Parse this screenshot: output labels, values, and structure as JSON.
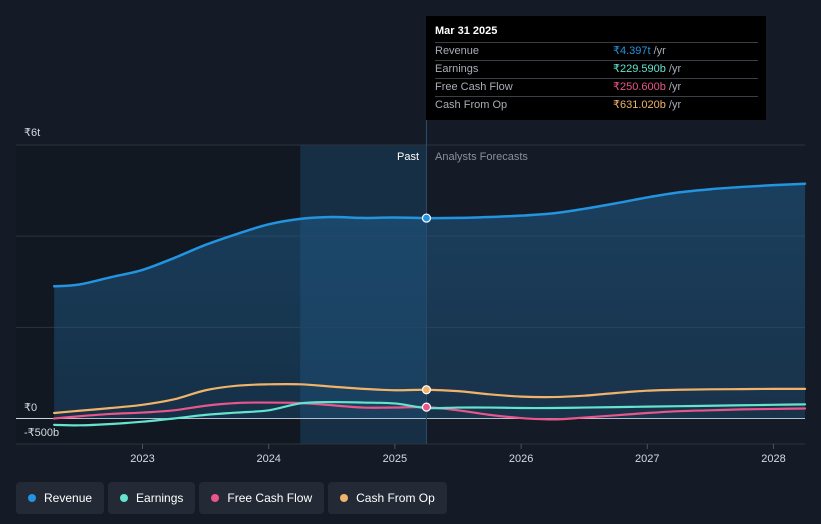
{
  "tooltip": {
    "date": "Mar 31 2025",
    "rows": [
      {
        "label": "Revenue",
        "value": "₹4.397t",
        "unit": "/yr",
        "color": "#2394df"
      },
      {
        "label": "Earnings",
        "value": "₹229.590b",
        "unit": "/yr",
        "color": "#64e3cf"
      },
      {
        "label": "Free Cash Flow",
        "value": "₹250.600b",
        "unit": "/yr",
        "color": "#e8568a"
      },
      {
        "label": "Cash From Op",
        "value": "₹631.020b",
        "unit": "/yr",
        "color": "#f1b36a"
      }
    ]
  },
  "legend": [
    {
      "label": "Revenue",
      "color": "#2394df"
    },
    {
      "label": "Earnings",
      "color": "#64e3cf"
    },
    {
      "label": "Free Cash Flow",
      "color": "#e8568a"
    },
    {
      "label": "Cash From Op",
      "color": "#f1b36a"
    }
  ],
  "chart_data": {
    "type": "line",
    "units": "INR",
    "y_axis_labels": [
      "₹6t",
      "₹0",
      "-₹500b"
    ],
    "ylim": [
      -0.5,
      6.0
    ],
    "xlim": [
      2022.3,
      2028.25
    ],
    "x_ticks": [
      2023,
      2024,
      2025,
      2026,
      2027,
      2028
    ],
    "x_tick_labels": [
      "2023",
      "2024",
      "2025",
      "2026",
      "2027",
      "2028"
    ],
    "past_label": "Past",
    "forecast_label": "Analysts Forecasts",
    "highlight_range": [
      2024.25,
      2025.25
    ],
    "divider_x": 2025.25,
    "series": [
      {
        "name": "Revenue",
        "color": "#2394df",
        "fill": true,
        "marker_x": 2025.25,
        "x": [
          2022.3,
          2022.5,
          2022.75,
          2023.0,
          2023.25,
          2023.5,
          2023.75,
          2024.0,
          2024.25,
          2024.5,
          2024.75,
          2025.0,
          2025.25,
          2025.5,
          2025.75,
          2026.0,
          2026.25,
          2026.5,
          2026.75,
          2027.0,
          2027.25,
          2027.5,
          2027.75,
          2028.0,
          2028.25
        ],
        "values": [
          2.9,
          2.94,
          3.1,
          3.26,
          3.52,
          3.81,
          4.05,
          4.26,
          4.38,
          4.42,
          4.4,
          4.41,
          4.397,
          4.4,
          4.42,
          4.45,
          4.5,
          4.6,
          4.72,
          4.85,
          4.96,
          5.03,
          5.08,
          5.12,
          5.15
        ]
      },
      {
        "name": "Earnings",
        "color": "#64e3cf",
        "fill": false,
        "x": [
          2022.3,
          2022.5,
          2022.75,
          2023.0,
          2023.25,
          2023.5,
          2023.75,
          2024.0,
          2024.25,
          2024.5,
          2024.75,
          2025.0,
          2025.25,
          2025.5,
          2025.75,
          2026.0,
          2026.25,
          2026.5,
          2026.75,
          2027.0,
          2027.25,
          2027.5,
          2027.75,
          2028.0,
          2028.25
        ],
        "values": [
          -0.14,
          -0.15,
          -0.12,
          -0.07,
          0.0,
          0.08,
          0.13,
          0.18,
          0.33,
          0.36,
          0.35,
          0.33,
          0.23,
          0.24,
          0.24,
          0.23,
          0.23,
          0.24,
          0.25,
          0.26,
          0.27,
          0.28,
          0.29,
          0.3,
          0.31
        ]
      },
      {
        "name": "Free Cash Flow",
        "color": "#e8568a",
        "fill": false,
        "marker_x": 2025.25,
        "x": [
          2022.3,
          2022.5,
          2022.75,
          2023.0,
          2023.25,
          2023.5,
          2023.75,
          2024.0,
          2024.25,
          2024.5,
          2024.75,
          2025.0,
          2025.25,
          2025.5,
          2025.75,
          2026.0,
          2026.25,
          2026.5,
          2026.75,
          2027.0,
          2027.25,
          2027.5,
          2027.75,
          2028.0,
          2028.25
        ],
        "values": [
          0.0,
          0.05,
          0.1,
          0.13,
          0.18,
          0.28,
          0.34,
          0.35,
          0.34,
          0.29,
          0.24,
          0.24,
          0.25,
          0.18,
          0.08,
          0.01,
          -0.02,
          0.02,
          0.07,
          0.12,
          0.16,
          0.18,
          0.2,
          0.21,
          0.22
        ]
      },
      {
        "name": "Cash From Op",
        "color": "#f1b36a",
        "fill": false,
        "marker_x": 2025.25,
        "x": [
          2022.3,
          2022.5,
          2022.75,
          2023.0,
          2023.25,
          2023.5,
          2023.75,
          2024.0,
          2024.25,
          2024.5,
          2024.75,
          2025.0,
          2025.25,
          2025.5,
          2025.75,
          2026.0,
          2026.25,
          2026.5,
          2026.75,
          2027.0,
          2027.25,
          2027.5,
          2027.75,
          2028.0,
          2028.25
        ],
        "values": [
          0.12,
          0.17,
          0.23,
          0.3,
          0.42,
          0.62,
          0.72,
          0.75,
          0.75,
          0.7,
          0.65,
          0.62,
          0.631,
          0.6,
          0.53,
          0.48,
          0.47,
          0.5,
          0.56,
          0.61,
          0.63,
          0.64,
          0.645,
          0.65,
          0.65
        ]
      }
    ]
  }
}
